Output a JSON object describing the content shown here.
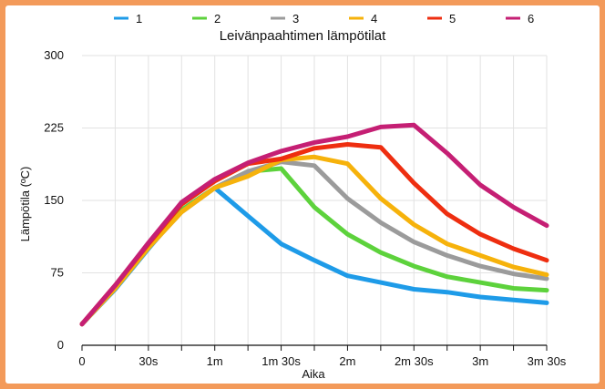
{
  "chart_data": {
    "type": "line",
    "title": "Leivänpaahtimen lämpötilat",
    "xlabel": "Aika",
    "ylabel": "Lämpötila (ºC)",
    "x": [
      0,
      15,
      30,
      45,
      60,
      75,
      90,
      105,
      120,
      135,
      150,
      165,
      180,
      195,
      210
    ],
    "x_tick_labels": [
      "0",
      "",
      "30s",
      "",
      "1m",
      "",
      "1m 30s",
      "",
      "2m",
      "",
      "2m 30s",
      "",
      "3m",
      "",
      "3m 30s"
    ],
    "y_ticks": [
      0,
      75,
      150,
      225,
      300
    ],
    "ylim": [
      0,
      300
    ],
    "xlim": [
      0,
      210
    ],
    "grid": true,
    "legend_position": "top",
    "series": [
      {
        "name": "1",
        "color": "#1e9be8",
        "values": [
          22,
          58,
          100,
          140,
          163,
          134,
          105,
          88,
          72,
          65,
          58,
          55,
          50,
          47,
          44
        ]
      },
      {
        "name": "2",
        "color": "#5dd23c",
        "values": [
          22,
          59,
          101,
          140,
          163,
          180,
          183,
          143,
          115,
          96,
          82,
          71,
          65,
          59,
          57
        ]
      },
      {
        "name": "3",
        "color": "#9b9b9b",
        "values": [
          22,
          59,
          101,
          138,
          163,
          180,
          190,
          186,
          152,
          127,
          107,
          93,
          82,
          74,
          69
        ]
      },
      {
        "name": "4",
        "color": "#f6b20b",
        "values": [
          22,
          59,
          101,
          138,
          163,
          175,
          192,
          195,
          188,
          152,
          125,
          105,
          93,
          81,
          73
        ]
      },
      {
        "name": "5",
        "color": "#ee2e10",
        "values": [
          22,
          62,
          105,
          146,
          170,
          188,
          193,
          204,
          208,
          205,
          168,
          136,
          115,
          100,
          88
        ]
      },
      {
        "name": "6",
        "color": "#c51f74",
        "values": [
          22,
          62,
          106,
          148,
          172,
          189,
          201,
          210,
          216,
          226,
          228,
          199,
          166,
          143,
          124
        ]
      }
    ]
  }
}
